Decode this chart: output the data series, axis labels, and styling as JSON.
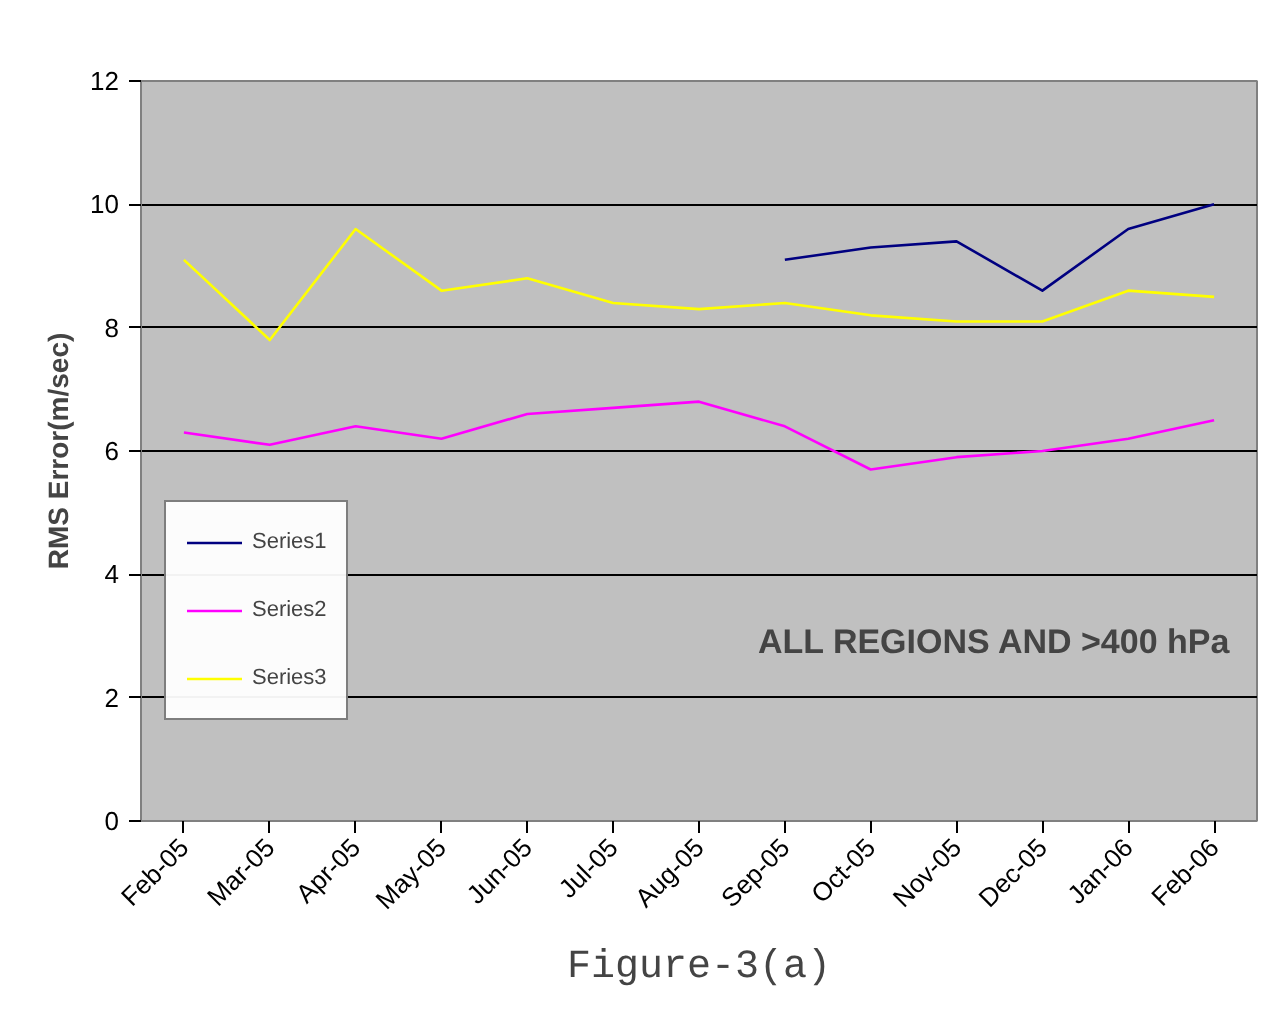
{
  "chart_data": {
    "type": "line",
    "ylabel": "RMS Error(m/sec)",
    "categories": [
      "Feb-05",
      "Mar-05",
      "Apr-05",
      "May-05",
      "Jun-05",
      "Jul-05",
      "Aug-05",
      "Sep-05",
      "Oct-05",
      "Nov-05",
      "Dec-05",
      "Jan-06",
      "Feb-06"
    ],
    "series": [
      {
        "name": "Series1",
        "color": "#000080",
        "values": [
          null,
          null,
          null,
          null,
          null,
          null,
          null,
          9.1,
          9.3,
          9.4,
          8.6,
          9.6,
          10.0
        ]
      },
      {
        "name": "Series2",
        "color": "#ff00ff",
        "values": [
          6.3,
          6.1,
          6.4,
          6.2,
          6.6,
          6.7,
          6.8,
          6.4,
          5.7,
          5.9,
          6.0,
          6.2,
          6.5
        ]
      },
      {
        "name": "Series3",
        "color": "#ffff00",
        "values": [
          9.1,
          7.8,
          9.6,
          8.6,
          8.8,
          8.4,
          8.3,
          8.4,
          8.2,
          8.1,
          8.1,
          8.6,
          8.5
        ]
      }
    ],
    "ylim": [
      0,
      12
    ],
    "yticks": [
      0,
      2,
      4,
      6,
      8,
      10,
      12
    ],
    "grid": "y",
    "legend": "bottom left",
    "marker": "none",
    "line_style": "solid",
    "annotations": [
      "ALL REGIONS AND >400 hPa",
      "Figure-3(a)"
    ]
  }
}
